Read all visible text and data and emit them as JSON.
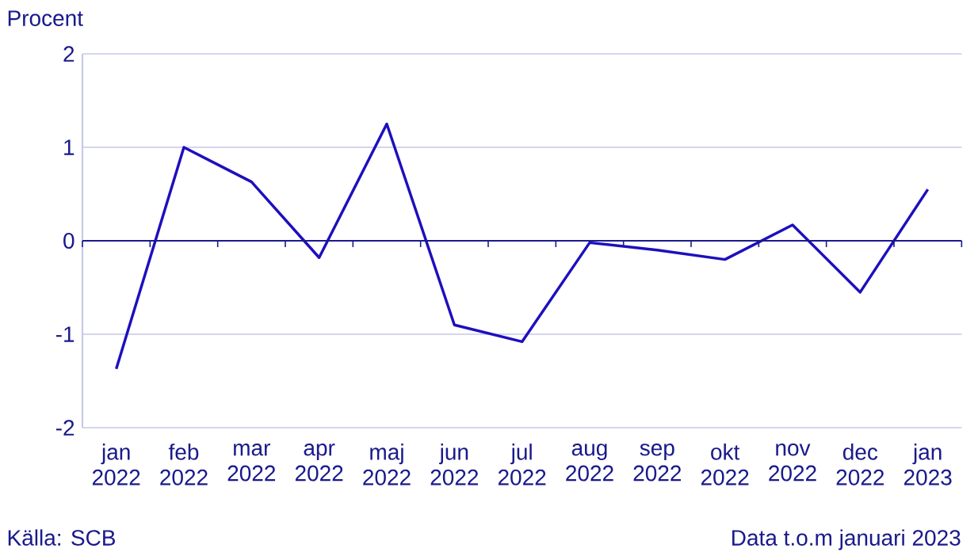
{
  "chart_data": {
    "type": "line",
    "ylabel": "Procent",
    "categories": [
      "jan 2022",
      "feb 2022",
      "mar 2022",
      "apr 2022",
      "maj 2022",
      "jun 2022",
      "jul 2022",
      "aug 2022",
      "sep 2022",
      "okt 2022",
      "nov 2022",
      "dec 2022",
      "jan 2023"
    ],
    "series": [
      {
        "color": "#1e0fbe",
        "values": [
          -1.37,
          1.0,
          0.63,
          -0.18,
          1.25,
          -0.9,
          -1.08,
          -0.02,
          -0.1,
          -0.2,
          0.17,
          -0.55,
          0.55
        ]
      }
    ],
    "ylim": [
      -2,
      2
    ],
    "yticks": [
      -2,
      -1,
      0,
      1,
      2
    ],
    "grid": "y",
    "ref_lines": [
      {
        "axis": "y",
        "value": 0,
        "color": "#1a1a8c"
      }
    ],
    "annotations": [
      "Källa: SCB",
      "Data t.o.m januari 2023"
    ]
  }
}
